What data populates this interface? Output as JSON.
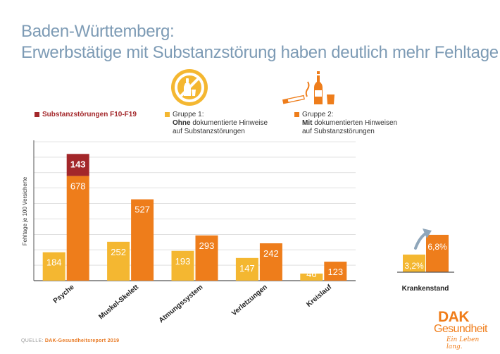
{
  "title": {
    "line1": "Baden-Württemberg:",
    "line2": "Erwerbstätige mit Substanzstörung haben deutlich mehr Fehltage"
  },
  "legend": {
    "substanz": "Substanzstörungen F10-F19",
    "gruppe1": {
      "line1": "Gruppe 1:",
      "bold": "Ohne",
      "line2_rest": " dokumentierte Hinweise",
      "line3": "auf Substanzstörungen"
    },
    "gruppe2": {
      "line1": "Gruppe 2:",
      "bold": "Mit",
      "line2_rest": " dokumentierten Hinweisen",
      "line3": "auf Substanzstörungen"
    }
  },
  "source": {
    "label": "QUELLE: ",
    "value": "DAK-Gesundheitsreport 2019"
  },
  "logo": {
    "brand": "DAK",
    "name": "Gesundheit",
    "slogan": "Ein Leben lang."
  },
  "colors": {
    "gruppe1": "#f4b731",
    "gruppe2": "#ee7d1b",
    "substanz": "#a3272a",
    "axis": "#555555",
    "grid": "#cccccc",
    "title": "#7d9bb5",
    "arrow": "#8fa6ba"
  },
  "icons": {
    "gruppe1": "no-alcohol-icon",
    "gruppe2": "cigarette-bottle-glass-icon",
    "trend": "trend-arrow-icon"
  },
  "chart_data": [
    {
      "type": "bar",
      "ylabel": "Fehltage je 100 Versicherte",
      "ylim": [
        0,
        900
      ],
      "grid": true,
      "categories": [
        "Psyche",
        "Muskel-Skelett",
        "Atmungssystem",
        "Verletzungen",
        "Kreislauf"
      ],
      "series": [
        {
          "name": "Gruppe 1",
          "values": [
            184,
            252,
            193,
            147,
            46
          ]
        },
        {
          "name": "Gruppe 2",
          "values": [
            678,
            527,
            293,
            242,
            123
          ]
        },
        {
          "name": "Substanzstörungen F10-F19",
          "values": [
            143,
            null,
            null,
            null,
            null
          ],
          "stacked_on": "Gruppe 2"
        }
      ]
    },
    {
      "type": "bar",
      "categories": [
        "Krankenstand"
      ],
      "ylim": [
        0,
        10
      ],
      "series": [
        {
          "name": "Gruppe 1",
          "values": [
            3.2
          ],
          "labels": [
            "3,2%"
          ]
        },
        {
          "name": "Gruppe 2",
          "values": [
            6.8
          ],
          "labels": [
            "6,8%"
          ]
        }
      ]
    }
  ]
}
